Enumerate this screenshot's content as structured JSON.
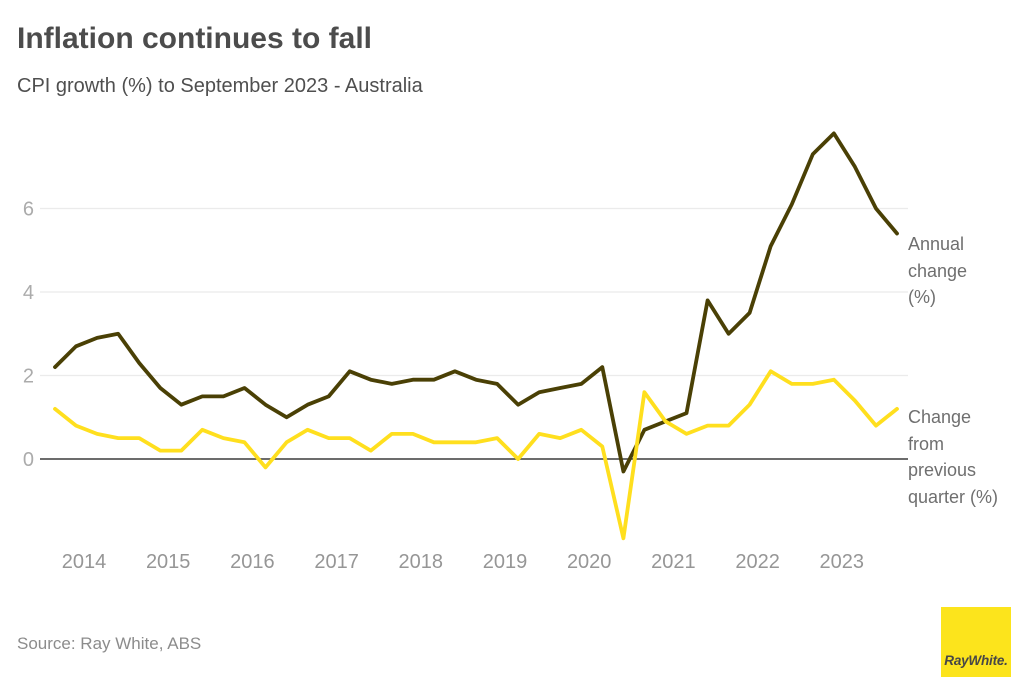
{
  "chart_data": {
    "type": "line",
    "title": "Inflation continues to fall",
    "subtitle": "CPI growth (%) to September 2023 - Australia",
    "grid": "horizontal",
    "legend_position": "right-inline",
    "ylim": [
      -2.1,
      8
    ],
    "yticks": [
      0,
      2,
      4,
      6
    ],
    "xticks": [
      "2014",
      "2015",
      "2016",
      "2017",
      "2018",
      "2019",
      "2020",
      "2021",
      "2022",
      "2023"
    ],
    "x_quarters": [
      "2013 Q3",
      "2013 Q4",
      "2014 Q1",
      "2014 Q2",
      "2014 Q3",
      "2014 Q4",
      "2015 Q1",
      "2015 Q2",
      "2015 Q3",
      "2015 Q4",
      "2016 Q1",
      "2016 Q2",
      "2016 Q3",
      "2016 Q4",
      "2017 Q1",
      "2017 Q2",
      "2017 Q3",
      "2017 Q4",
      "2018 Q1",
      "2018 Q2",
      "2018 Q3",
      "2018 Q4",
      "2019 Q1",
      "2019 Q2",
      "2019 Q3",
      "2019 Q4",
      "2020 Q1",
      "2020 Q2",
      "2020 Q3",
      "2020 Q4",
      "2021 Q1",
      "2021 Q2",
      "2021 Q3",
      "2021 Q4",
      "2022 Q1",
      "2022 Q2",
      "2022 Q3",
      "2022 Q4",
      "2023 Q1",
      "2023 Q2",
      "2023 Q3"
    ],
    "series": [
      {
        "name": "Annual change (%)",
        "label": "Annual change (%)",
        "color": "#4a4005",
        "values": [
          2.2,
          2.7,
          2.9,
          3.0,
          2.3,
          1.7,
          1.3,
          1.5,
          1.5,
          1.7,
          1.3,
          1.0,
          1.3,
          1.5,
          2.1,
          1.9,
          1.8,
          1.9,
          1.9,
          2.1,
          1.9,
          1.8,
          1.3,
          1.6,
          1.7,
          1.8,
          2.2,
          -0.3,
          0.7,
          0.9,
          1.1,
          3.8,
          3.0,
          3.5,
          5.1,
          6.1,
          7.3,
          7.8,
          7.0,
          6.0,
          5.4
        ]
      },
      {
        "name": "Change from previous quarter (%)",
        "label": "Change from previous quarter (%)",
        "color": "#ffdf1e",
        "values": [
          1.2,
          0.8,
          0.6,
          0.5,
          0.5,
          0.2,
          0.2,
          0.7,
          0.5,
          0.4,
          -0.2,
          0.4,
          0.7,
          0.5,
          0.5,
          0.2,
          0.6,
          0.6,
          0.4,
          0.4,
          0.4,
          0.5,
          0.0,
          0.6,
          0.5,
          0.7,
          0.3,
          -1.9,
          1.6,
          0.9,
          0.6,
          0.8,
          0.8,
          1.3,
          2.1,
          1.8,
          1.8,
          1.9,
          1.4,
          0.8,
          1.2
        ]
      }
    ],
    "axis_colors": {
      "gridline": "#ebebeb",
      "zero_line": "#3c3c3c",
      "y_tick_label": "#ababab",
      "x_tick_label": "#969696"
    }
  },
  "footer": {
    "source": "Source: Ray White, ABS",
    "logo_text": "RayWhite."
  },
  "brand": {
    "logo_bg": "#fce41c",
    "logo_text_color": "#474747"
  }
}
